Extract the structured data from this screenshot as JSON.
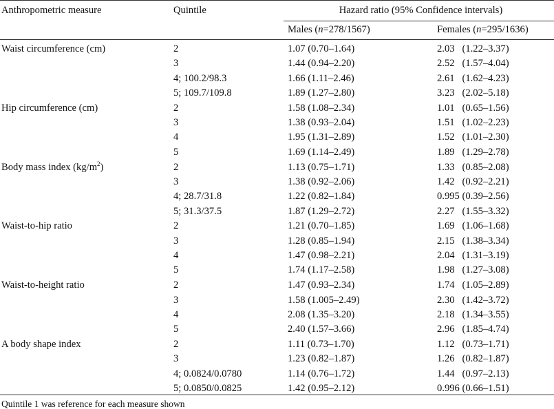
{
  "header": {
    "col_measure": "Anthropometric measure",
    "col_quintile": "Quintile",
    "col_hr": "Hazard ratio (95% Confidence intervals)",
    "males_label": "Males (",
    "males_n": "n",
    "males_counts": "=278/1567)",
    "females_label": "Females (",
    "females_n": "n",
    "females_counts": "=295/1636)"
  },
  "groups": [
    {
      "measure": "Waist circumference (cm)",
      "rows": [
        {
          "quintile": "2",
          "males": "1.07 (0.70–1.64)",
          "females": "2.03   (1.22–3.37)"
        },
        {
          "quintile": "3",
          "males": "1.44 (0.94–2.20)",
          "females": "2.52   (1.57–4.04)"
        },
        {
          "quintile": "4; 100.2/98.3",
          "males": "1.66 (1.11–2.46)",
          "females": "2.61   (1.62–4.23)"
        },
        {
          "quintile": "5; 109.7/109.8",
          "males": "1.89 (1.27–2.80)",
          "females": "3.23   (2.02–5.18)"
        }
      ]
    },
    {
      "measure": "Hip circumference (cm)",
      "rows": [
        {
          "quintile": "2",
          "males": "1.58 (1.08–2.34)",
          "females": "1.01   (0.65–1.56)"
        },
        {
          "quintile": "3",
          "males": "1.38 (0.93–2.04)",
          "females": "1.51   (1.02–2.23)"
        },
        {
          "quintile": "4",
          "males": "1.95 (1.31–2.89)",
          "females": "1.52   (1.01–2.30)"
        },
        {
          "quintile": "5",
          "males": "1.69 (1.14–2.49)",
          "females": "1.89   (1.29–2.78)"
        }
      ]
    },
    {
      "measure": "Body mass index (kg/m",
      "measure_sup": "2",
      "measure_end": ")",
      "rows": [
        {
          "quintile": "2",
          "males": "1.13 (0.75–1.71)",
          "females": "1.33   (0.85–2.08)"
        },
        {
          "quintile": "3",
          "males": "1.38 (0.92–2.06)",
          "females": "1.42   (0.92–2.21)"
        },
        {
          "quintile": "4; 28.7/31.8",
          "males": "1.22 (0.82–1.84)",
          "females": "0.995 (0.39–2.56)"
        },
        {
          "quintile": "5; 31.3/37.5",
          "males": "1.87 (1.29–2.72)",
          "females": "2.27   (1.55–3.32)"
        }
      ]
    },
    {
      "measure": "Waist-to-hip ratio",
      "rows": [
        {
          "quintile": "2",
          "males": "1.21 (0.70–1.85)",
          "females": "1.69   (1.06–1.68)"
        },
        {
          "quintile": "3",
          "males": "1.28 (0.85–1.94)",
          "females": "2.15   (1.38–3.34)"
        },
        {
          "quintile": "4",
          "males": "1.47 (0.98–2.21)",
          "females": "2.04   (1.31–3.19)"
        },
        {
          "quintile": "5",
          "males": "1.74 (1.17–2.58)",
          "females": "1.98   (1.27–3.08)"
        }
      ]
    },
    {
      "measure": "Waist-to-height ratio",
      "rows": [
        {
          "quintile": "2",
          "males": "1.47 (0.93–2.34)",
          "females": "1.74   (1.05–2.89)"
        },
        {
          "quintile": "3",
          "males": "1.58 (1.005–2.49)",
          "females": "2.30   (1.42–3.72)"
        },
        {
          "quintile": "4",
          "males": "2.08 (1.35–3.20)",
          "females": "2.18   (1.34–3.55)"
        },
        {
          "quintile": "5",
          "males": "2.40 (1.57–3.66)",
          "females": "2.96   (1.85–4.74)"
        }
      ]
    },
    {
      "measure": "A body shape index",
      "rows": [
        {
          "quintile": "2",
          "males": "1.11 (0.73–1.70)",
          "females": "1.12   (0.73–1.71)"
        },
        {
          "quintile": "3",
          "males": "1.23 (0.82–1.87)",
          "females": "1.26   (0.82–1.87)"
        },
        {
          "quintile": "4; 0.0824/0.0780",
          "males": "1.14 (0.76–1.72)",
          "females": "1.44   (0.97–2.13)"
        },
        {
          "quintile": "5; 0.0850/0.0825",
          "males": "1.42 (0.95–2.12)",
          "females": "0.996 (0.66–1.51)"
        }
      ]
    }
  ],
  "footnote": "Quintile 1 was reference for each measure shown"
}
